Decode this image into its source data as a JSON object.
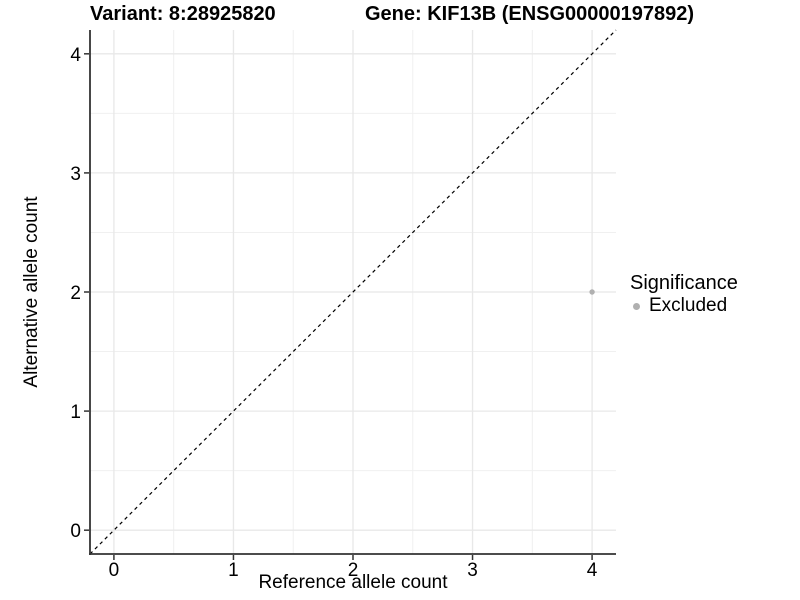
{
  "titles": {
    "variant": "Variant: 8:28925820",
    "gene": "Gene: KIF13B (ENSG00000197892)"
  },
  "legend": {
    "title": "Significance",
    "items": [
      {
        "label": "Excluded",
        "color": "#b0b0b0"
      }
    ]
  },
  "colors": {
    "background": "#ffffff",
    "grid_major": "#e8e8e8",
    "grid_minor": "#f0f0f0",
    "axis_line": "#333333",
    "tick_mark": "#333333",
    "text": "#000000",
    "reference_line": "#000000"
  },
  "chart_data": {
    "type": "scatter",
    "title": "Variant: 8:28925820   |   Gene: KIF13B (ENSG00000197892)",
    "xlabel": "Reference allele count",
    "ylabel": "Alternative allele count",
    "xlim": [
      -0.2,
      4.2
    ],
    "ylim": [
      -0.2,
      4.2
    ],
    "x_ticks": [
      0,
      1,
      2,
      3,
      4
    ],
    "y_ticks": [
      0,
      1,
      2,
      3,
      4
    ],
    "grid": true,
    "legend_position": "right",
    "series": [
      {
        "name": "Excluded",
        "color": "#b0b0b0",
        "points": [
          {
            "x": 4,
            "y": 2
          }
        ]
      }
    ],
    "reference_line": {
      "type": "identity",
      "style": "dashed",
      "color": "#000000"
    }
  }
}
